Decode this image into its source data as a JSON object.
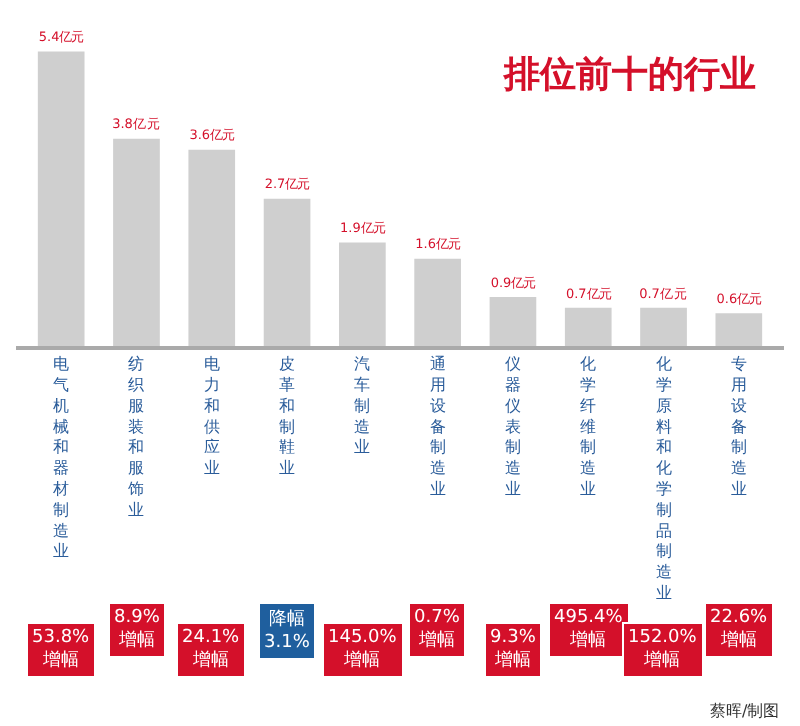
{
  "chart_data": {
    "type": "bar",
    "title": "排位前十的行业",
    "categories": [
      "电气机械和器材制造业",
      "纺织服装和服饰业",
      "电力和供应业",
      "皮革和制鞋业",
      "汽车制造业",
      "通用设备制造业",
      "仪器仪表制造业",
      "化学纤维制造业",
      "化学原料和化学制品制造业",
      "专用设备制造业"
    ],
    "values": [
      5.4,
      3.8,
      3.6,
      2.7,
      1.9,
      1.6,
      0.9,
      0.7,
      0.7,
      0.6
    ],
    "value_labels": [
      "5.4亿元",
      "3.8亿元",
      "3.6亿元",
      "2.7亿元",
      "1.9亿元",
      "1.6亿元",
      "0.9亿元",
      "0.7亿元",
      "0.7亿元",
      "0.6亿元"
    ],
    "color": "#cfcfcf",
    "annotations": [
      "53.8%增幅",
      "8.9%增幅",
      "24.1%增幅",
      "降幅3.1%",
      "145.0%增幅",
      "0.7%增幅",
      "9.3%增幅",
      "495.4%增幅",
      "152.0%增幅",
      "22.6%增幅",
      "蔡晖/制图"
    ]
  }
}
